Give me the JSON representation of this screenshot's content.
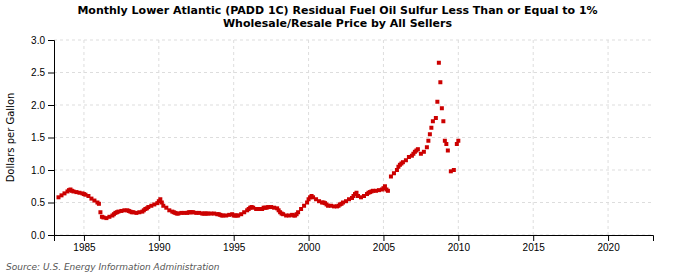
{
  "chart_data": {
    "type": "scatter",
    "title": "Monthly Lower Atlantic (PADD 1C) Residual Fuel Oil Sulfur Less Than or Equal to 1%\nWholesale/Resale Price by All Sellers",
    "y_label": "Dollars per Gallon",
    "source": "Source: U.S. Energy Information Administration",
    "color": "#cc0000",
    "marker": "square",
    "grid": true,
    "xlim": [
      1983.0,
      2023.0
    ],
    "xticks": [
      1985,
      1990,
      1995,
      2000,
      2005,
      2010,
      2015,
      2020
    ],
    "ylim": [
      0.0,
      3.0
    ],
    "yticks": [
      {
        "value": 0.0,
        "label": "0.0"
      },
      0.5,
      {
        "value": 1.0,
        "label": "1.0"
      },
      1.5,
      {
        "value": 2.0,
        "label": "2.0"
      },
      2.5,
      {
        "value": 3.0,
        "label": "3.0"
      }
    ],
    "x": [
      1983.3,
      1983.5,
      1983.7,
      1983.9,
      1984.0,
      1984.1,
      1984.2,
      1984.3,
      1984.5,
      1984.7,
      1984.9,
      1985.0,
      1985.1,
      1985.3,
      1985.5,
      1985.7,
      1985.9,
      1986.0,
      1986.1,
      1986.2,
      1986.3,
      1986.5,
      1986.7,
      1986.9,
      1987.0,
      1987.1,
      1987.2,
      1987.3,
      1987.5,
      1987.7,
      1987.9,
      1988.0,
      1988.1,
      1988.2,
      1988.3,
      1988.5,
      1988.7,
      1988.9,
      1989.0,
      1989.1,
      1989.2,
      1989.3,
      1989.5,
      1989.7,
      1989.9,
      1990.0,
      1990.1,
      1990.2,
      1990.3,
      1990.5,
      1990.7,
      1990.9,
      1991.0,
      1991.1,
      1991.2,
      1991.3,
      1991.5,
      1991.7,
      1991.9,
      1992.0,
      1992.1,
      1992.2,
      1992.3,
      1992.5,
      1992.7,
      1992.9,
      1993.0,
      1993.1,
      1993.2,
      1993.3,
      1993.5,
      1993.7,
      1993.9,
      1994.0,
      1994.1,
      1994.2,
      1994.3,
      1994.5,
      1994.7,
      1994.9,
      1995.0,
      1995.1,
      1995.2,
      1995.3,
      1995.5,
      1995.7,
      1995.9,
      1996.0,
      1996.1,
      1996.2,
      1996.3,
      1996.5,
      1996.7,
      1996.9,
      1997.0,
      1997.1,
      1997.2,
      1997.3,
      1997.5,
      1997.7,
      1997.9,
      1998.0,
      1998.1,
      1998.2,
      1998.3,
      1998.5,
      1998.7,
      1998.9,
      1999.0,
      1999.1,
      1999.2,
      1999.3,
      1999.5,
      1999.7,
      1999.9,
      2000.0,
      2000.1,
      2000.2,
      2000.3,
      2000.5,
      2000.7,
      2000.9,
      2001.0,
      2001.1,
      2001.2,
      2001.3,
      2001.5,
      2001.7,
      2001.9,
      2002.0,
      2002.1,
      2002.2,
      2002.3,
      2002.5,
      2002.7,
      2002.9,
      2003.0,
      2003.1,
      2003.2,
      2003.3,
      2003.5,
      2003.7,
      2003.9,
      2004.0,
      2004.1,
      2004.2,
      2004.3,
      2004.5,
      2004.7,
      2004.9,
      2005.0,
      2005.1,
      2005.2,
      2005.3,
      2005.5,
      2005.7,
      2005.9,
      2006.0,
      2006.1,
      2006.2,
      2006.3,
      2006.5,
      2006.7,
      2006.9,
      2007.0,
      2007.1,
      2007.2,
      2007.3,
      2007.5,
      2007.7,
      2007.9,
      2008.0,
      2008.1,
      2008.2,
      2008.3,
      2008.5,
      2008.6,
      2008.7,
      2008.8,
      2008.9,
      2009.0,
      2009.1,
      2009.2,
      2009.3,
      2009.5,
      2009.7,
      2009.9,
      2010.0
    ],
    "values": [
      0.58,
      0.61,
      0.64,
      0.67,
      0.69,
      0.7,
      0.68,
      0.67,
      0.66,
      0.65,
      0.64,
      0.63,
      0.62,
      0.6,
      0.56,
      0.53,
      0.5,
      0.48,
      0.35,
      0.28,
      0.27,
      0.26,
      0.28,
      0.3,
      0.32,
      0.34,
      0.35,
      0.36,
      0.37,
      0.38,
      0.38,
      0.37,
      0.36,
      0.35,
      0.35,
      0.34,
      0.35,
      0.36,
      0.38,
      0.4,
      0.41,
      0.43,
      0.45,
      0.47,
      0.49,
      0.52,
      0.55,
      0.5,
      0.45,
      0.42,
      0.38,
      0.36,
      0.35,
      0.34,
      0.33,
      0.33,
      0.34,
      0.34,
      0.34,
      0.35,
      0.35,
      0.35,
      0.35,
      0.34,
      0.34,
      0.33,
      0.33,
      0.33,
      0.33,
      0.33,
      0.33,
      0.33,
      0.32,
      0.32,
      0.31,
      0.3,
      0.3,
      0.3,
      0.31,
      0.32,
      0.3,
      0.3,
      0.3,
      0.3,
      0.32,
      0.35,
      0.38,
      0.4,
      0.42,
      0.43,
      0.42,
      0.4,
      0.4,
      0.4,
      0.42,
      0.42,
      0.42,
      0.43,
      0.43,
      0.42,
      0.41,
      0.38,
      0.35,
      0.33,
      0.32,
      0.3,
      0.3,
      0.31,
      0.3,
      0.3,
      0.32,
      0.35,
      0.4,
      0.45,
      0.5,
      0.55,
      0.58,
      0.6,
      0.58,
      0.55,
      0.52,
      0.5,
      0.5,
      0.49,
      0.47,
      0.45,
      0.45,
      0.44,
      0.44,
      0.45,
      0.47,
      0.48,
      0.5,
      0.52,
      0.55,
      0.57,
      0.6,
      0.63,
      0.65,
      0.6,
      0.58,
      0.6,
      0.63,
      0.65,
      0.66,
      0.67,
      0.68,
      0.68,
      0.69,
      0.7,
      0.72,
      0.75,
      0.7,
      0.68,
      0.9,
      0.95,
      1.0,
      1.05,
      1.08,
      1.1,
      1.12,
      1.15,
      1.2,
      1.22,
      1.25,
      1.28,
      1.3,
      1.32,
      1.25,
      1.28,
      1.35,
      1.45,
      1.55,
      1.65,
      1.75,
      1.8,
      2.05,
      2.65,
      2.35,
      1.95,
      1.75,
      1.45,
      1.4,
      1.3,
      0.98,
      1.0,
      1.4,
      1.45
    ]
  }
}
